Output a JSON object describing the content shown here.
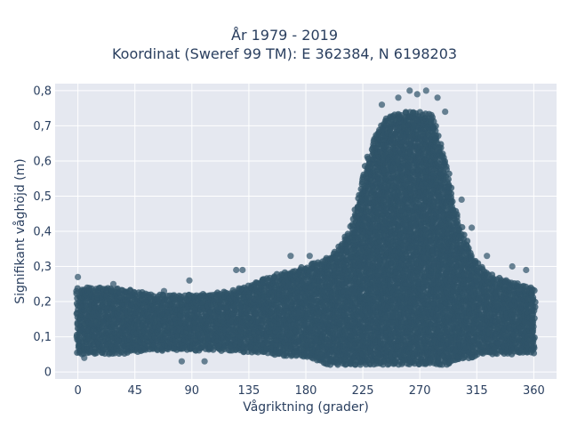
{
  "chart_data": {
    "type": "scatter",
    "title": "År 1979 - 2019",
    "subtitle": "Koordinat (Sweref 99 TM): E 362384, N 6198203",
    "xlabel": "Vågriktning (grader)",
    "ylabel": "Signifikant våghöjd (m)",
    "xlim": [
      -18,
      378
    ],
    "ylim": [
      -0.02,
      0.82
    ],
    "xticks": [
      0,
      45,
      90,
      135,
      180,
      225,
      270,
      315,
      360
    ],
    "xtick_labels": [
      "0",
      "45",
      "90",
      "135",
      "180",
      "225",
      "270",
      "315",
      "360"
    ],
    "yticks": [
      0,
      0.1,
      0.2,
      0.3,
      0.4,
      0.5,
      0.6,
      0.7,
      0.8
    ],
    "ytick_labels": [
      "0",
      "0,1",
      "0,2",
      "0,3",
      "0,4",
      "0,5",
      "0,6",
      "0,7",
      "0,8"
    ],
    "grid": true,
    "marker_color": "#2f5368",
    "background_color": "#e5e8f0",
    "envelope": {
      "direction_deg": [
        0,
        30,
        60,
        90,
        120,
        150,
        180,
        200,
        215,
        225,
        235,
        245,
        260,
        270,
        280,
        290,
        300,
        310,
        320,
        330,
        340,
        350,
        360
      ],
      "min_height_m": [
        0.05,
        0.05,
        0.06,
        0.06,
        0.06,
        0.05,
        0.04,
        0.02,
        0.02,
        0.02,
        0.02,
        0.02,
        0.02,
        0.02,
        0.02,
        0.02,
        0.03,
        0.04,
        0.05,
        0.05,
        0.05,
        0.05,
        0.05
      ],
      "max_height_m": [
        0.24,
        0.24,
        0.22,
        0.22,
        0.23,
        0.27,
        0.3,
        0.33,
        0.4,
        0.55,
        0.68,
        0.73,
        0.74,
        0.74,
        0.73,
        0.6,
        0.43,
        0.34,
        0.29,
        0.27,
        0.26,
        0.25,
        0.24
      ]
    },
    "outliers": [
      {
        "x": 0,
        "y": 0.27
      },
      {
        "x": 28,
        "y": 0.25
      },
      {
        "x": 68,
        "y": 0.23
      },
      {
        "x": 88,
        "y": 0.26
      },
      {
        "x": 125,
        "y": 0.29
      },
      {
        "x": 130,
        "y": 0.29
      },
      {
        "x": 168,
        "y": 0.33
      },
      {
        "x": 183,
        "y": 0.33
      },
      {
        "x": 240,
        "y": 0.76
      },
      {
        "x": 253,
        "y": 0.78
      },
      {
        "x": 262,
        "y": 0.8
      },
      {
        "x": 268,
        "y": 0.79
      },
      {
        "x": 275,
        "y": 0.8
      },
      {
        "x": 284,
        "y": 0.78
      },
      {
        "x": 290,
        "y": 0.74
      },
      {
        "x": 303,
        "y": 0.49
      },
      {
        "x": 311,
        "y": 0.41
      },
      {
        "x": 323,
        "y": 0.33
      },
      {
        "x": 343,
        "y": 0.3
      },
      {
        "x": 354,
        "y": 0.29
      },
      {
        "x": 100,
        "y": 0.03
      },
      {
        "x": 82,
        "y": 0.03
      },
      {
        "x": 5,
        "y": 0.04
      }
    ]
  }
}
